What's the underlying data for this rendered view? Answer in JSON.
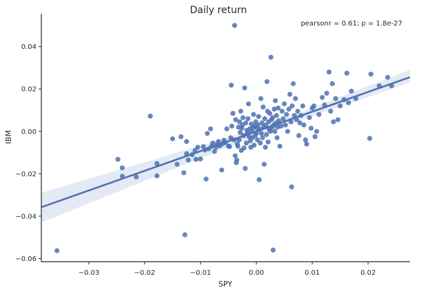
{
  "chart_data": {
    "type": "scatter",
    "title": "Daily return",
    "xlabel": "SPY",
    "ylabel": "IBM",
    "annotation": "pearsonr = 0.61; p = 1.8e-27",
    "xlim": [
      -0.0385,
      0.0275
    ],
    "ylim": [
      -0.0615,
      0.0555
    ],
    "xticks": [
      -0.03,
      -0.02,
      -0.01,
      0.0,
      0.01,
      0.02
    ],
    "xtick_labels": [
      "−0.03",
      "−0.02",
      "−0.01",
      "0.00",
      "0.01",
      "0.02"
    ],
    "yticks": [
      -0.06,
      -0.04,
      -0.02,
      0.0,
      0.02,
      0.04
    ],
    "ytick_labels": [
      "−0.06",
      "−0.04",
      "−0.02",
      "0.00",
      "0.02",
      "0.04"
    ],
    "grid": false,
    "colors": {
      "points": "#4c72b0",
      "line": "#4c72b0",
      "band": "#4c72b0"
    },
    "regression": {
      "slope": 0.93,
      "intercept": 0.0,
      "ci_at_xmin": [
        -0.043,
        -0.029
      ],
      "ci_at_center": [
        -0.0015,
        0.0015
      ],
      "ci_at_xmax": [
        0.023,
        0.029
      ]
    },
    "points": [
      [
        -0.0357,
        -0.0563
      ],
      [
        -0.0248,
        -0.0132
      ],
      [
        -0.024,
        -0.0172
      ],
      [
        -0.024,
        -0.0212
      ],
      [
        -0.0215,
        -0.0215
      ],
      [
        -0.019,
        0.0072
      ],
      [
        -0.0178,
        -0.0152
      ],
      [
        -0.0178,
        -0.021
      ],
      [
        -0.015,
        -0.0035
      ],
      [
        -0.0142,
        -0.0155
      ],
      [
        -0.0135,
        -0.0025
      ],
      [
        -0.013,
        -0.0195
      ],
      [
        -0.0128,
        -0.0488
      ],
      [
        -0.0125,
        -0.0048
      ],
      [
        -0.0125,
        -0.0105
      ],
      [
        -0.0122,
        -0.0135
      ],
      [
        -0.0115,
        -0.011
      ],
      [
        -0.011,
        -0.009
      ],
      [
        -0.0108,
        -0.0132
      ],
      [
        -0.0105,
        -0.0075
      ],
      [
        -0.01,
        -0.013
      ],
      [
        -0.0095,
        -0.0072
      ],
      [
        -0.0092,
        -0.0088
      ],
      [
        -0.009,
        -0.0225
      ],
      [
        -0.0088,
        -0.001
      ],
      [
        -0.0085,
        -0.0082
      ],
      [
        -0.0082,
        0.0012
      ],
      [
        -0.008,
        -0.007
      ],
      [
        -0.0078,
        -0.0055
      ],
      [
        -0.0075,
        -0.0095
      ],
      [
        -0.0072,
        -0.0075
      ],
      [
        -0.007,
        -0.0062
      ],
      [
        -0.0068,
        -0.0048
      ],
      [
        -0.0065,
        -0.0068
      ],
      [
        -0.0062,
        -0.0182
      ],
      [
        -0.006,
        -0.0058
      ],
      [
        -0.0058,
        -0.0042
      ],
      [
        -0.0055,
        -0.0052
      ],
      [
        -0.0053,
        0.0012
      ],
      [
        -0.005,
        -0.007
      ],
      [
        -0.0048,
        -0.0072
      ],
      [
        -0.0046,
        -0.003
      ],
      [
        -0.0045,
        0.0218
      ],
      [
        -0.0044,
        0.0025
      ],
      [
        -0.0042,
        0.0085
      ],
      [
        -0.004,
        -0.004
      ],
      [
        -0.0039,
        0.05
      ],
      [
        -0.0038,
        -0.0115
      ],
      [
        -0.0037,
        0.0055
      ],
      [
        -0.0036,
        -0.0148
      ],
      [
        -0.0035,
        -0.0135
      ],
      [
        -0.0034,
        -0.006
      ],
      [
        -0.0033,
        -0.007
      ],
      [
        -0.0032,
        0.002
      ],
      [
        -0.0031,
        -0.004
      ],
      [
        -0.003,
        0.0045
      ],
      [
        -0.0029,
        -0.0005
      ],
      [
        -0.0028,
        0.0095
      ],
      [
        -0.0027,
        -0.009
      ],
      [
        -0.0026,
        0.0015
      ],
      [
        -0.0025,
        0.003
      ],
      [
        -0.0024,
        0.0065
      ],
      [
        -0.0023,
        -0.002
      ],
      [
        -0.0022,
        -0.0078
      ],
      [
        -0.0021,
        0.0205
      ],
      [
        -0.002,
        -0.0175
      ],
      [
        -0.0019,
        0.004
      ],
      [
        -0.0018,
        -0.0055
      ],
      [
        -0.0017,
        0.0005
      ],
      [
        -0.0016,
        -0.001
      ],
      [
        -0.0015,
        0.006
      ],
      [
        -0.0014,
        0.013
      ],
      [
        -0.0013,
        -0.0025
      ],
      [
        -0.0012,
        0.0012
      ],
      [
        -0.0011,
        -0.0045
      ],
      [
        -0.001,
        -0.0075
      ],
      [
        -0.0009,
        0.0035
      ],
      [
        -0.0008,
        0.0
      ],
      [
        -0.0007,
        -0.003
      ],
      [
        -0.0006,
        0.0018
      ],
      [
        -0.0005,
        0.008
      ],
      [
        -0.0004,
        -0.0065
      ],
      [
        -0.0003,
        0.0025
      ],
      [
        -0.0002,
        -0.002
      ],
      [
        -0.0001,
        0.0045
      ],
      [
        0.0,
        -0.0008
      ],
      [
        0.0001,
        0.0015
      ],
      [
        0.0002,
        -0.004
      ],
      [
        0.0003,
        0.003
      ],
      [
        0.0004,
        0.007
      ],
      [
        0.0005,
        -0.0228
      ],
      [
        0.0006,
        0.001
      ],
      [
        0.0007,
        -0.0055
      ],
      [
        0.0008,
        0.0155
      ],
      [
        0.0009,
        -0.001
      ],
      [
        0.001,
        0.004
      ],
      [
        0.0011,
        -0.003
      ],
      [
        0.0012,
        0.0115
      ],
      [
        0.0013,
        0.002
      ],
      [
        0.0014,
        -0.0155
      ],
      [
        0.0015,
        0.006
      ],
      [
        0.0016,
        -0.0075
      ],
      [
        0.0017,
        0.003
      ],
      [
        0.0018,
        -0.0015
      ],
      [
        0.0019,
        0.0235
      ],
      [
        0.002,
        0.0095
      ],
      [
        0.0021,
        -0.005
      ],
      [
        0.0022,
        0.0045
      ],
      [
        0.0023,
        0.001
      ],
      [
        0.0024,
        0.0085
      ],
      [
        0.0025,
        0.0
      ],
      [
        0.0026,
        0.035
      ],
      [
        0.0027,
        0.0055
      ],
      [
        0.0028,
        0.002
      ],
      [
        0.0029,
        0.0065
      ],
      [
        0.003,
        -0.056
      ],
      [
        0.0031,
        0.003
      ],
      [
        0.0032,
        0.0105
      ],
      [
        0.0033,
        0.0
      ],
      [
        0.0034,
        0.0145
      ],
      [
        0.0035,
        0.004
      ],
      [
        0.0036,
        0.0075
      ],
      [
        0.0037,
        -0.003
      ],
      [
        0.0038,
        0.002
      ],
      [
        0.0039,
        0.011
      ],
      [
        0.004,
        0.005
      ],
      [
        0.0042,
        -0.007
      ],
      [
        0.0044,
        0.0025
      ],
      [
        0.0046,
        0.0095
      ],
      [
        0.0048,
        0.006
      ],
      [
        0.005,
        0.013
      ],
      [
        0.0052,
        0.003
      ],
      [
        0.0054,
        0.008
      ],
      [
        0.0056,
        0.0
      ],
      [
        0.0058,
        0.0105
      ],
      [
        0.006,
        0.0175
      ],
      [
        0.0062,
        0.0045
      ],
      [
        0.0063,
        -0.0262
      ],
      [
        0.0064,
        0.012
      ],
      [
        0.0066,
        0.0225
      ],
      [
        0.0068,
        0.0075
      ],
      [
        0.007,
        0.0155
      ],
      [
        0.0072,
        0.0055
      ],
      [
        0.0074,
        0.0095
      ],
      [
        0.0076,
        -0.002
      ],
      [
        0.0078,
        0.004
      ],
      [
        0.008,
        0.0075
      ],
      [
        0.0083,
        0.012
      ],
      [
        0.0085,
        0.003
      ],
      [
        0.0088,
        -0.004
      ],
      [
        0.009,
        -0.006
      ],
      [
        0.0095,
        0.0065
      ],
      [
        0.0098,
        0.0015
      ],
      [
        0.01,
        0.011
      ],
      [
        0.0103,
        0.012
      ],
      [
        0.0105,
        -0.0025
      ],
      [
        0.0108,
        0.0
      ],
      [
        0.0112,
        0.008
      ],
      [
        0.0118,
        0.016
      ],
      [
        0.0122,
        0.0125
      ],
      [
        0.0126,
        0.018
      ],
      [
        0.013,
        0.028
      ],
      [
        0.0133,
        0.0095
      ],
      [
        0.0136,
        0.0225
      ],
      [
        0.0138,
        0.0045
      ],
      [
        0.0142,
        0.0155
      ],
      [
        0.0146,
        0.0055
      ],
      [
        0.015,
        0.012
      ],
      [
        0.0157,
        0.015
      ],
      [
        0.0162,
        0.0275
      ],
      [
        0.0165,
        0.0135
      ],
      [
        0.017,
        0.019
      ],
      [
        0.0178,
        0.0155
      ],
      [
        0.0203,
        -0.0033
      ],
      [
        0.0205,
        0.027
      ],
      [
        0.022,
        0.0215
      ],
      [
        0.0235,
        0.0255
      ],
      [
        0.0242,
        0.0215
      ]
    ]
  }
}
